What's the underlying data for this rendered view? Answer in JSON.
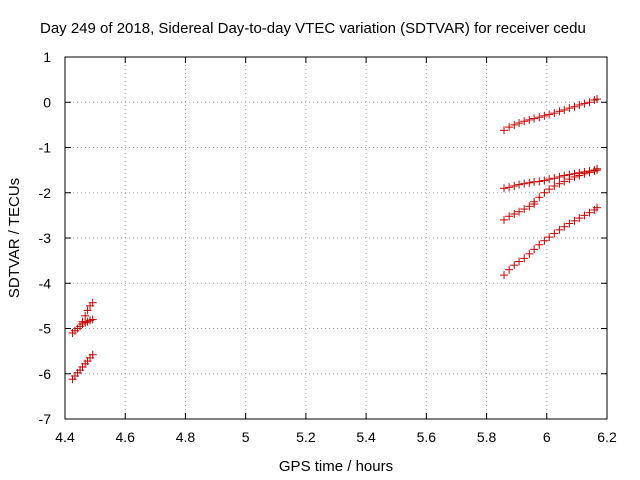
{
  "chart_data": {
    "type": "scatter",
    "title": "Day 249 of 2018, Sidereal Day-to-day VTEC variation (SDTVAR) for receiver cedu",
    "xlabel": "GPS time / hours",
    "ylabel": "SDTVAR / TECUs",
    "xlim": [
      4.4,
      6.2
    ],
    "ylim": [
      -7,
      1
    ],
    "xticks": [
      "4.4",
      "4.6",
      "4.8",
      "5",
      "5.2",
      "5.4",
      "5.6",
      "5.8",
      "6",
      "6.2"
    ],
    "yticks": [
      "1",
      "0",
      "-1",
      "-2",
      "-3",
      "-4",
      "-5",
      "-6",
      "-7"
    ],
    "grid": true,
    "marker": "+",
    "color": "#cc0000",
    "series": [
      {
        "x": [
          4.425,
          4.433,
          4.442,
          4.45,
          4.458,
          4.467,
          4.475,
          4.483,
          4.492
        ],
        "y": [
          -5.1,
          -5.05,
          -5.0,
          -4.95,
          -4.9,
          -4.87,
          -4.85,
          -4.82,
          -4.8
        ]
      },
      {
        "x": [
          4.458,
          4.467,
          4.475,
          4.483,
          4.492
        ],
        "y": [
          -4.85,
          -4.72,
          -4.6,
          -4.5,
          -4.43
        ]
      },
      {
        "x": [
          4.425,
          4.433,
          4.442,
          4.45,
          4.458,
          4.467,
          4.475,
          4.483,
          4.492
        ],
        "y": [
          -6.12,
          -6.05,
          -5.98,
          -5.92,
          -5.85,
          -5.78,
          -5.72,
          -5.65,
          -5.58
        ]
      },
      {
        "x": [
          5.858,
          5.875,
          5.892,
          5.908,
          5.925,
          5.942,
          5.958,
          5.975,
          5.992,
          6.008,
          6.025,
          6.042,
          6.058,
          6.075,
          6.092,
          6.108,
          6.125,
          6.142,
          6.158,
          6.167
        ],
        "y": [
          -0.62,
          -0.55,
          -0.5,
          -0.46,
          -0.42,
          -0.39,
          -0.36,
          -0.33,
          -0.3,
          -0.27,
          -0.24,
          -0.2,
          -0.17,
          -0.13,
          -0.1,
          -0.06,
          -0.03,
          0.0,
          0.05,
          0.07
        ]
      },
      {
        "x": [
          5.858,
          5.875,
          5.892,
          5.908,
          5.925,
          5.942,
          5.958,
          5.975,
          5.992,
          6.008,
          6.025,
          6.042,
          6.058,
          6.075,
          6.092,
          6.108,
          6.125,
          6.142,
          6.158,
          6.167
        ],
        "y": [
          -1.9,
          -1.88,
          -1.85,
          -1.82,
          -1.8,
          -1.78,
          -1.76,
          -1.75,
          -1.73,
          -1.7,
          -1.68,
          -1.65,
          -1.62,
          -1.6,
          -1.58,
          -1.56,
          -1.54,
          -1.52,
          -1.5,
          -1.47
        ]
      },
      {
        "x": [
          5.958,
          5.975,
          5.992,
          6.008,
          6.025,
          6.042,
          6.058,
          6.075,
          6.092,
          6.108,
          6.125,
          6.142,
          6.158,
          6.167
        ],
        "y": [
          -2.2,
          -2.1,
          -2.0,
          -1.92,
          -1.85,
          -1.8,
          -1.75,
          -1.7,
          -1.65,
          -1.62,
          -1.58,
          -1.55,
          -1.52,
          -1.5
        ]
      },
      {
        "x": [
          5.858,
          5.875,
          5.892,
          5.908,
          5.925,
          5.942,
          5.958
        ],
        "y": [
          -2.6,
          -2.52,
          -2.47,
          -2.42,
          -2.36,
          -2.3,
          -2.25
        ]
      },
      {
        "x": [
          5.858,
          5.875,
          5.892,
          5.908,
          5.925,
          5.942,
          5.958,
          5.975,
          5.992,
          6.008,
          6.025,
          6.042,
          6.058,
          6.075,
          6.092,
          6.108,
          6.125,
          6.142,
          6.158,
          6.167
        ],
        "y": [
          -3.82,
          -3.7,
          -3.6,
          -3.52,
          -3.45,
          -3.35,
          -3.25,
          -3.15,
          -3.06,
          -2.98,
          -2.9,
          -2.82,
          -2.75,
          -2.68,
          -2.62,
          -2.56,
          -2.5,
          -2.44,
          -2.38,
          -2.33
        ]
      }
    ]
  }
}
